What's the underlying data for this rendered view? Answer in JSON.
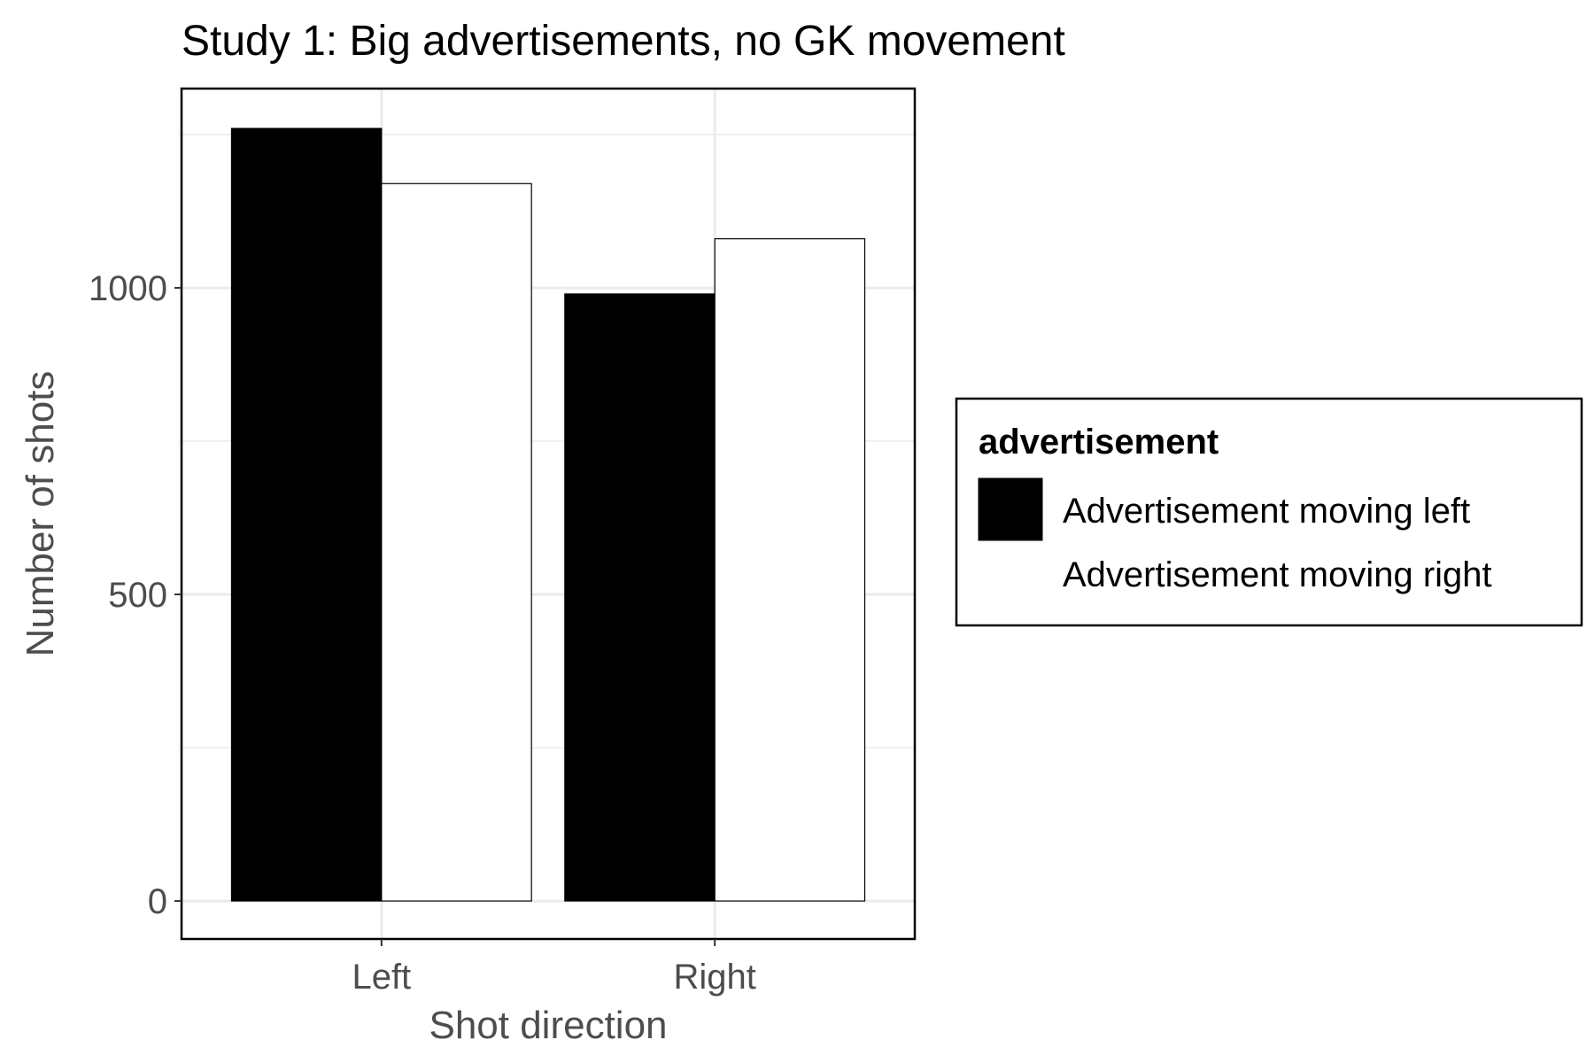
{
  "chart_data": {
    "type": "bar",
    "title": "Study 1: Big advertisements, no GK movement",
    "xlabel": "Shot direction",
    "ylabel": "Number of shots",
    "categories": [
      "Left",
      "Right"
    ],
    "series": [
      {
        "name": "Advertisement moving left",
        "values": [
          1260,
          990
        ],
        "color": "#000000"
      },
      {
        "name": "Advertisement moving right",
        "values": [
          1170,
          1080
        ],
        "color": "#ffffff"
      }
    ],
    "ylim": [
      -62,
      1325
    ],
    "yticks": [
      0,
      500,
      1000
    ],
    "grid": true,
    "legend": {
      "title": "advertisement",
      "placement": "right"
    }
  }
}
